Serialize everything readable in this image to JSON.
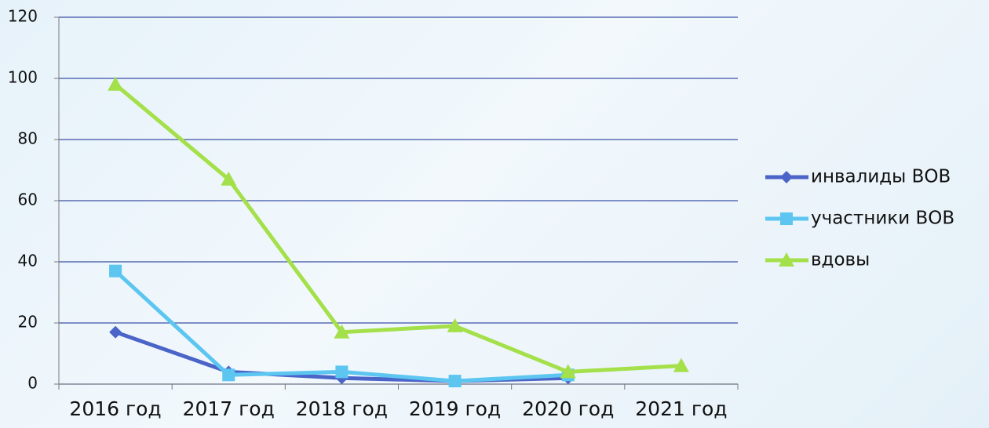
{
  "chart_data": {
    "type": "line",
    "categories": [
      "2016 год",
      "2017 год",
      "2018 год",
      "2019 год",
      "2020 год",
      "2021 год"
    ],
    "series": [
      {
        "name": "инвалиды ВОВ",
        "color": "#4a64c8",
        "marker": "diamond",
        "values": [
          17,
          4,
          2,
          1,
          2,
          null
        ]
      },
      {
        "name": "участники ВОВ",
        "color": "#5cc6f0",
        "marker": "square",
        "values": [
          37,
          3,
          4,
          1,
          3,
          null
        ]
      },
      {
        "name": "вдовы",
        "color": "#a4e04a",
        "marker": "triangle",
        "values": [
          98,
          67,
          17,
          19,
          4,
          6
        ]
      }
    ],
    "ylim": [
      0,
      120
    ],
    "yticks": [
      0,
      20,
      40,
      60,
      80,
      100,
      120
    ],
    "grid": true,
    "legend": "right"
  }
}
